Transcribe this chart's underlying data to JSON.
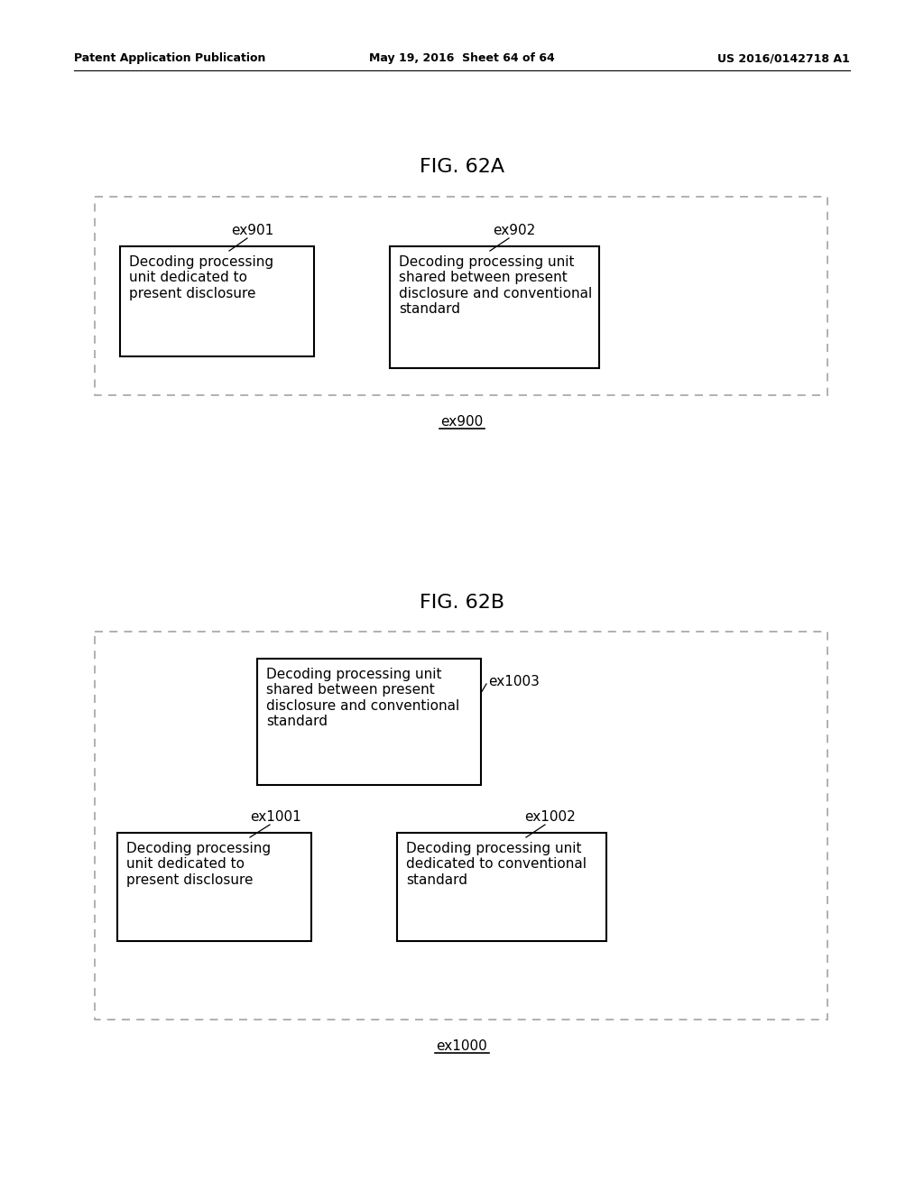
{
  "header_left": "Patent Application Publication",
  "header_mid": "May 19, 2016  Sheet 64 of 64",
  "header_right": "US 2016/0142718 A1",
  "fig_a_title": "FIG. 62A",
  "fig_b_title": "FIG. 62B",
  "fig_a_label": "ex900",
  "fig_b_label": "ex1000",
  "fig_a": {
    "box901_label": "ex901",
    "box901_text": "Decoding processing\nunit dedicated to\npresent disclosure",
    "box902_label": "ex902",
    "box902_text": "Decoding processing unit\nshared between present\ndisclosure and conventional\nstandard"
  },
  "fig_b": {
    "box1003_label": "ex1003",
    "box1003_text": "Decoding processing unit\nshared between present\ndisclosure and conventional\nstandard",
    "box1001_label": "ex1001",
    "box1001_text": "Decoding processing\nunit dedicated to\npresent disclosure",
    "box1002_label": "ex1002",
    "box1002_text": "Decoding processing unit\ndedicated to conventional\nstandard"
  },
  "bg_color": "#ffffff",
  "text_color": "#000000"
}
